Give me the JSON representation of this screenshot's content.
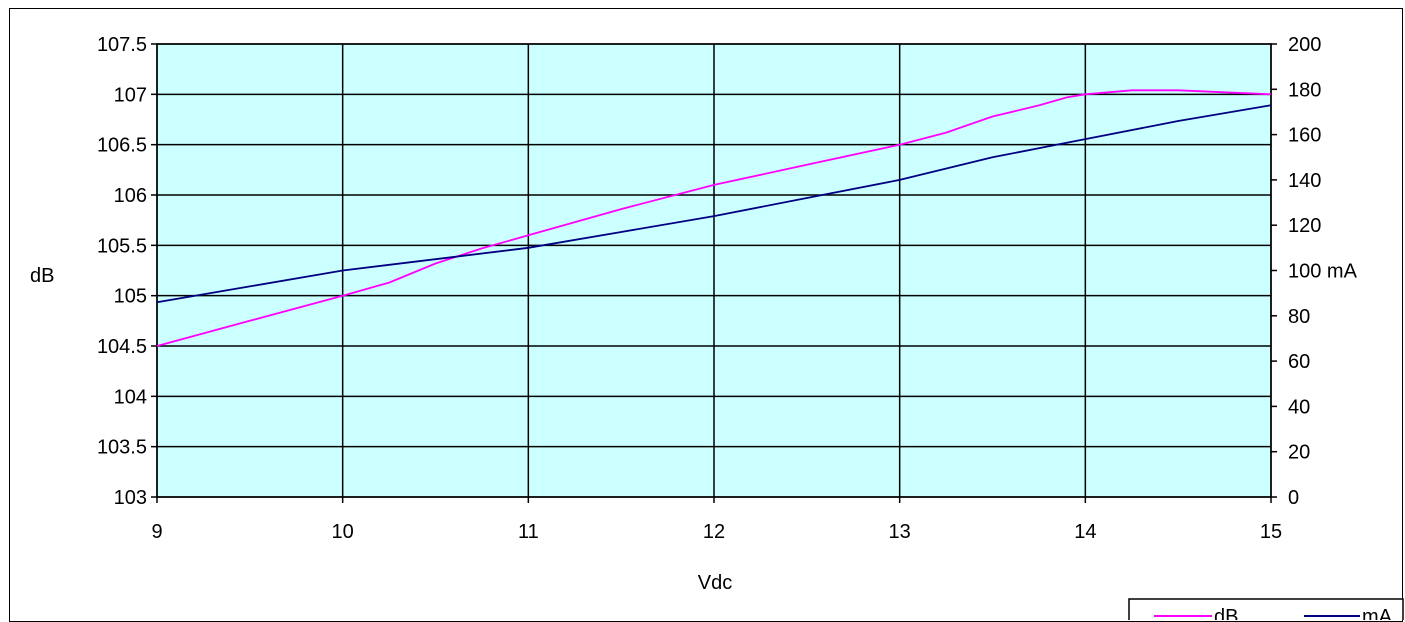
{
  "chart_data": {
    "type": "line",
    "xlabel": "Vdc",
    "ylabel": "dB",
    "y2label": "mA",
    "xlim": [
      9,
      15
    ],
    "xticks": [
      "9",
      "10",
      "11",
      "12",
      "13",
      "14",
      "15"
    ],
    "ylim": [
      103,
      107.5
    ],
    "yticks": [
      "103",
      "103.5",
      "104",
      "104.5",
      "105",
      "105.5",
      "106",
      "106.5",
      "107",
      "107.5"
    ],
    "y2lim": [
      0,
      200
    ],
    "y2ticks": [
      "0",
      "20",
      "40",
      "60",
      "80",
      "100 mA",
      "120",
      "140",
      "160",
      "180",
      "200"
    ],
    "grid": true,
    "plot_background": "#ccffff",
    "legend_position": "bottom-right",
    "series": [
      {
        "name": "dB",
        "axis": "left",
        "color": "#ff00ff",
        "x": [
          9,
          9.5,
          10,
          10.25,
          10.5,
          10.75,
          11,
          11.5,
          12,
          12.5,
          13,
          13.25,
          13.5,
          13.75,
          13.9,
          14,
          14.25,
          14.5,
          14.75,
          15
        ],
        "y": [
          104.5,
          104.75,
          105.0,
          105.13,
          105.32,
          105.47,
          105.6,
          105.86,
          106.1,
          106.3,
          106.5,
          106.62,
          106.78,
          106.89,
          106.97,
          107.0,
          107.04,
          107.04,
          107.02,
          107.0
        ]
      },
      {
        "name": "mA",
        "axis": "right",
        "color": "#000080",
        "x": [
          9,
          9.5,
          10,
          10.5,
          11,
          11.5,
          12,
          12.5,
          13,
          13.5,
          14,
          14.5,
          15
        ],
        "y": [
          86,
          93,
          100,
          105,
          110,
          117,
          124,
          132,
          140,
          150,
          158,
          166,
          173
        ]
      }
    ]
  }
}
